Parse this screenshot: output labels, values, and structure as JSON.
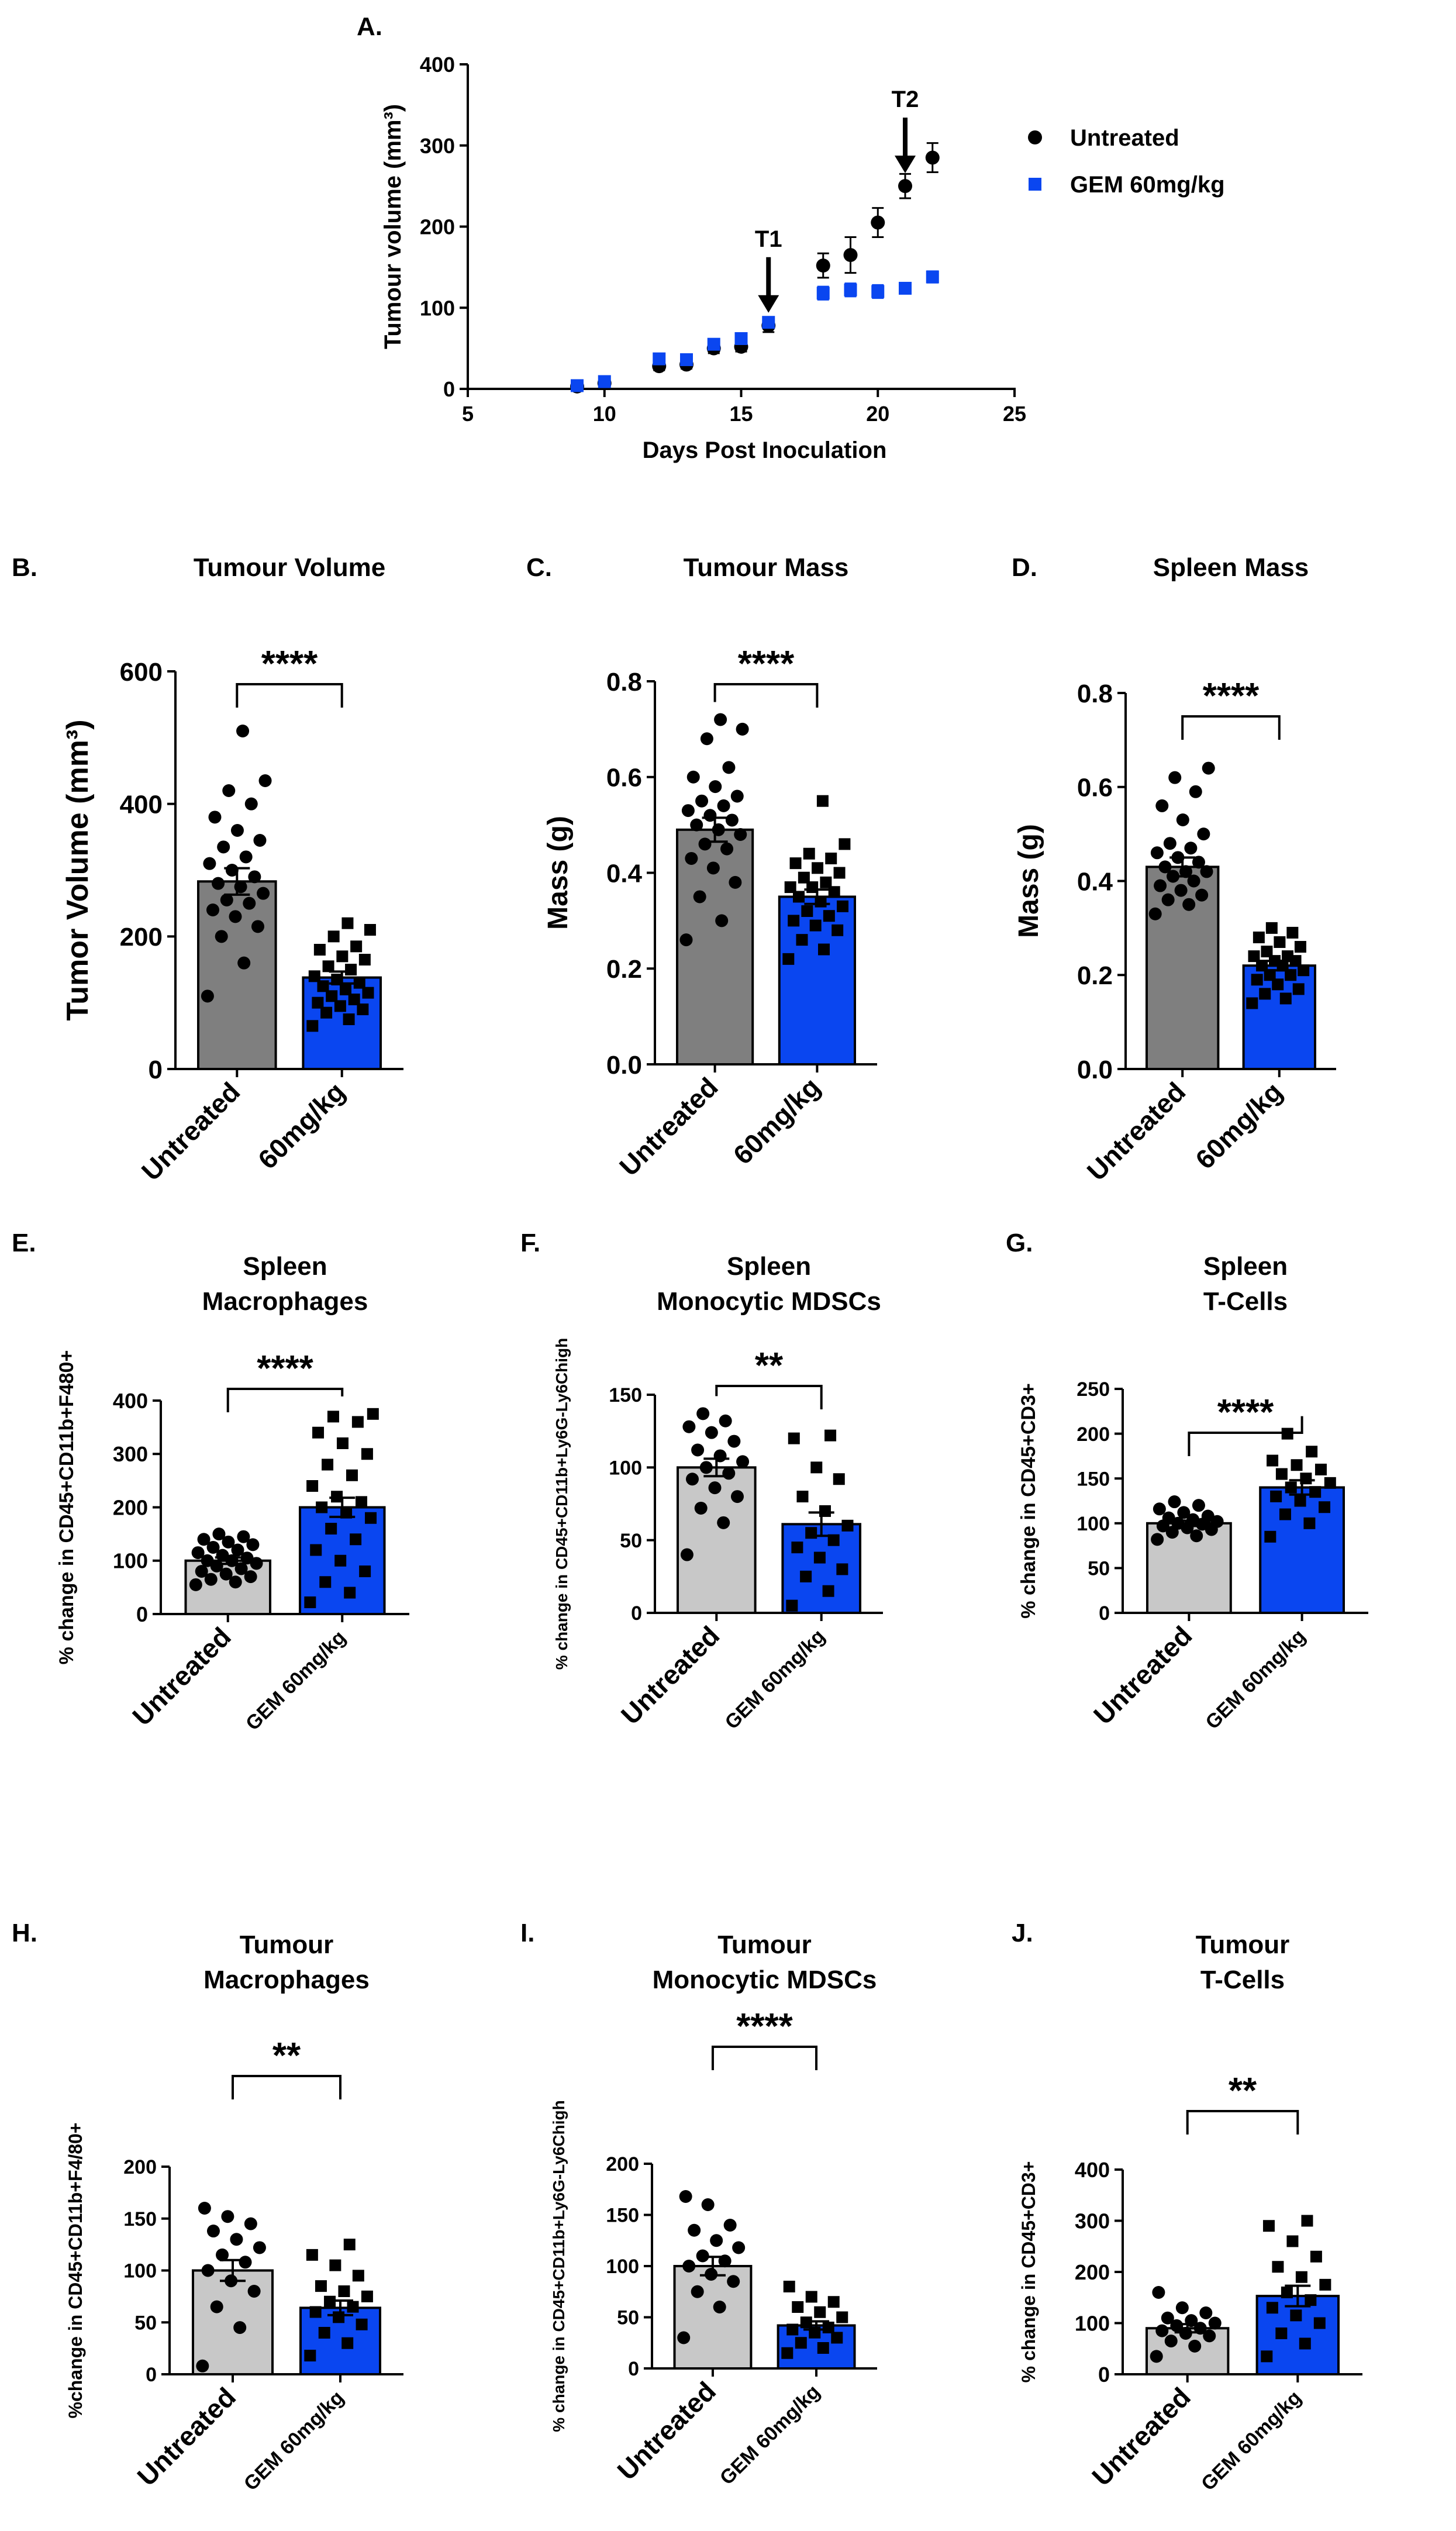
{
  "figure": {
    "colors": {
      "black": "#000000",
      "blue": "#0a46f0",
      "dark_gray": "#7f7f7f",
      "light_gray": "#c8c8c8",
      "arrow_blue": "#1f4fe0"
    }
  },
  "chart_data": [
    {
      "id": "A",
      "type": "scatter",
      "panel_label": "A.",
      "title": "",
      "xlabel": "Days Post Inoculation",
      "ylabel": "Tumour volume (mm³)",
      "xlim": [
        5,
        25
      ],
      "ylim": [
        0,
        400
      ],
      "xticks": [
        5,
        10,
        15,
        20,
        25
      ],
      "yticks": [
        0,
        100,
        200,
        300,
        400
      ],
      "legend_position": "right",
      "series": [
        {
          "name": "Untreated",
          "marker": "circle",
          "color": "#000000",
          "x": [
            9,
            10,
            12,
            13,
            14,
            15,
            16,
            18,
            19,
            20,
            21,
            22
          ],
          "y": [
            3,
            7,
            28,
            30,
            50,
            52,
            78,
            152,
            165,
            205,
            250,
            285
          ],
          "err": [
            2,
            2,
            5,
            5,
            6,
            6,
            8,
            15,
            22,
            18,
            15,
            18
          ]
        },
        {
          "name": "GEM 60mg/kg",
          "marker": "square",
          "color": "#0a46f0",
          "x": [
            9,
            10,
            12,
            13,
            14,
            15,
            16,
            18,
            19,
            20,
            21,
            22
          ],
          "y": [
            4,
            9,
            37,
            36,
            55,
            62,
            82,
            118,
            122,
            120,
            124,
            138
          ],
          "err": [
            2,
            2,
            5,
            5,
            5,
            6,
            6,
            8,
            8,
            8,
            6,
            7
          ]
        }
      ],
      "annotations": [
        {
          "text": "T1",
          "x": 16,
          "y": 78
        },
        {
          "text": "T2",
          "x": 21,
          "y": 250
        }
      ]
    },
    {
      "id": "B",
      "type": "bar",
      "panel_label": "B.",
      "title": "Tumour Volume",
      "ylabel": "Tumor Volume (mm³)",
      "categories": [
        "Untreated",
        "60mg/kg"
      ],
      "ylim": [
        0,
        600
      ],
      "yticks": [
        0,
        200,
        400,
        600
      ],
      "significance": "****",
      "values": [
        283,
        138
      ],
      "sem": [
        20,
        9
      ],
      "bar_colors": [
        "#7f7f7f",
        "#0a46f0"
      ],
      "points": [
        [
          110,
          160,
          200,
          215,
          230,
          240,
          250,
          255,
          265,
          275,
          280,
          290,
          300,
          310,
          320,
          335,
          345,
          360,
          380,
          400,
          420,
          435,
          510
        ],
        [
          65,
          75,
          85,
          90,
          95,
          100,
          105,
          110,
          115,
          120,
          125,
          130,
          135,
          140,
          150,
          155,
          165,
          170,
          180,
          185,
          200,
          210,
          220
        ]
      ]
    },
    {
      "id": "C",
      "type": "bar",
      "panel_label": "C.",
      "title": "Tumour Mass",
      "ylabel": "Mass (g)",
      "categories": [
        "Untreated",
        "60mg/kg"
      ],
      "ylim": [
        0,
        0.8
      ],
      "yticks": [
        0.0,
        0.2,
        0.4,
        0.6,
        0.8
      ],
      "significance": "****",
      "values": [
        0.49,
        0.35
      ],
      "sem": [
        0.025,
        0.015
      ],
      "bar_colors": [
        "#7f7f7f",
        "#0a46f0"
      ],
      "points": [
        [
          0.26,
          0.3,
          0.35,
          0.38,
          0.41,
          0.43,
          0.45,
          0.46,
          0.48,
          0.49,
          0.5,
          0.51,
          0.52,
          0.53,
          0.54,
          0.55,
          0.56,
          0.58,
          0.6,
          0.62,
          0.68,
          0.7,
          0.72
        ],
        [
          0.22,
          0.24,
          0.26,
          0.28,
          0.29,
          0.3,
          0.31,
          0.32,
          0.33,
          0.34,
          0.35,
          0.36,
          0.37,
          0.37,
          0.38,
          0.39,
          0.4,
          0.41,
          0.42,
          0.43,
          0.44,
          0.46,
          0.55
        ]
      ]
    },
    {
      "id": "D",
      "type": "bar",
      "panel_label": "D.",
      "title": "Spleen Mass",
      "ylabel": "Mass (g)",
      "categories": [
        "Untreated",
        "60mg/kg"
      ],
      "ylim": [
        0,
        0.8
      ],
      "yticks": [
        0.0,
        0.2,
        0.4,
        0.6,
        0.8
      ],
      "significance": "****",
      "values": [
        0.43,
        0.22
      ],
      "sem": [
        0.02,
        0.01
      ],
      "bar_colors": [
        "#7f7f7f",
        "#0a46f0"
      ],
      "points": [
        [
          0.33,
          0.35,
          0.36,
          0.37,
          0.38,
          0.39,
          0.4,
          0.41,
          0.42,
          0.42,
          0.43,
          0.44,
          0.45,
          0.46,
          0.47,
          0.48,
          0.5,
          0.53,
          0.56,
          0.59,
          0.62,
          0.64
        ],
        [
          0.14,
          0.15,
          0.16,
          0.17,
          0.18,
          0.19,
          0.2,
          0.2,
          0.21,
          0.22,
          0.22,
          0.23,
          0.23,
          0.24,
          0.24,
          0.25,
          0.26,
          0.27,
          0.28,
          0.29,
          0.3
        ]
      ]
    },
    {
      "id": "E",
      "type": "bar",
      "panel_label": "E.",
      "title": [
        "Spleen",
        "Macrophages"
      ],
      "ylabel": "% change in CD45+CD11b+F480+",
      "categories": [
        "Untreated",
        "GEM 60mg/kg"
      ],
      "ylim": [
        0,
        400
      ],
      "yticks": [
        0,
        100,
        200,
        300,
        400
      ],
      "significance": "****",
      "values": [
        100,
        200
      ],
      "sem": [
        6,
        18
      ],
      "bar_colors": [
        "#c8c8c8",
        "#0a46f0"
      ],
      "points": [
        [
          55,
          60,
          65,
          70,
          75,
          80,
          85,
          90,
          95,
          100,
          100,
          105,
          110,
          115,
          120,
          125,
          130,
          135,
          140,
          145,
          150
        ],
        [
          22,
          40,
          60,
          80,
          100,
          120,
          140,
          160,
          180,
          190,
          200,
          210,
          220,
          240,
          260,
          280,
          300,
          320,
          340,
          360,
          370,
          375
        ]
      ]
    },
    {
      "id": "F",
      "type": "bar",
      "panel_label": "F.",
      "title": [
        "Spleen",
        "Monocytic MDSCs"
      ],
      "ylabel": "% change in CD45+CD11b+Ly6G-Ly6Chigh",
      "categories": [
        "Untreated",
        "GEM 60mg/kg"
      ],
      "ylim": [
        0,
        150
      ],
      "yticks": [
        0,
        50,
        100,
        150
      ],
      "significance": "**",
      "values": [
        100,
        61
      ],
      "sem": [
        6,
        8
      ],
      "bar_colors": [
        "#c8c8c8",
        "#0a46f0"
      ],
      "points": [
        [
          40,
          62,
          72,
          80,
          86,
          92,
          96,
          100,
          104,
          108,
          112,
          118,
          124,
          128,
          132,
          137
        ],
        [
          5,
          15,
          25,
          30,
          38,
          45,
          50,
          55,
          60,
          70,
          80,
          92,
          100,
          120,
          122
        ]
      ]
    },
    {
      "id": "G",
      "type": "bar",
      "panel_label": "G.",
      "title": [
        "Spleen",
        "T-Cells"
      ],
      "ylabel": "% change in CD45+CD3+",
      "categories": [
        "Untreated",
        "GEM 60mg/kg"
      ],
      "ylim": [
        0,
        250
      ],
      "yticks": [
        0,
        50,
        100,
        150,
        200,
        250
      ],
      "significance": "****",
      "values": [
        100,
        140
      ],
      "sem": [
        3,
        8
      ],
      "bar_colors": [
        "#c8c8c8",
        "#0a46f0"
      ],
      "points": [
        [
          82,
          86,
          90,
          93,
          95,
          97,
          99,
          100,
          102,
          104,
          106,
          108,
          112,
          116,
          120,
          124
        ],
        [
          85,
          100,
          110,
          118,
          125,
          130,
          135,
          140,
          145,
          150,
          155,
          160,
          165,
          170,
          180,
          200
        ]
      ]
    },
    {
      "id": "H",
      "type": "bar",
      "panel_label": "H.",
      "title": [
        "Tumour",
        "Macrophages"
      ],
      "ylabel": "%change in CD45+CD11b+F4/80+",
      "categories": [
        "Untreated",
        "GEM 60mg/kg"
      ],
      "ylim": [
        0,
        200
      ],
      "yticks": [
        0,
        50,
        100,
        150,
        200
      ],
      "significance": "**",
      "values": [
        100,
        64
      ],
      "sem": [
        10,
        7
      ],
      "bar_colors": [
        "#c8c8c8",
        "#0a46f0"
      ],
      "points": [
        [
          8,
          45,
          65,
          80,
          90,
          100,
          108,
          115,
          122,
          130,
          138,
          145,
          152,
          160
        ],
        [
          18,
          30,
          40,
          48,
          55,
          60,
          65,
          70,
          75,
          80,
          85,
          95,
          105,
          115,
          125
        ]
      ]
    },
    {
      "id": "I",
      "type": "bar",
      "panel_label": "I.",
      "title": [
        "Tumour",
        "Monocytic MDSCs"
      ],
      "ylabel": "% change in CD45+CD11b+Ly6G-Ly6Chigh",
      "categories": [
        "Untreated",
        "GEM 60mg/kg"
      ],
      "ylim": [
        0,
        200
      ],
      "yticks": [
        0,
        50,
        100,
        150,
        200
      ],
      "significance": "****",
      "values": [
        100,
        42
      ],
      "sem": [
        9,
        4
      ],
      "bar_colors": [
        "#c8c8c8",
        "#0a46f0"
      ],
      "points": [
        [
          30,
          60,
          75,
          85,
          92,
          100,
          105,
          110,
          118,
          125,
          135,
          140,
          160,
          168
        ],
        [
          15,
          20,
          25,
          30,
          35,
          38,
          40,
          45,
          50,
          55,
          60,
          65,
          70,
          80
        ]
      ]
    },
    {
      "id": "J",
      "type": "bar",
      "panel_label": "J.",
      "title": [
        "Tumour",
        "T-Cells"
      ],
      "ylabel": "% change in CD45+CD3+",
      "categories": [
        "Untreated",
        "GEM 60mg/kg"
      ],
      "ylim": [
        0,
        400
      ],
      "yticks": [
        0,
        100,
        200,
        300,
        400
      ],
      "significance": "**",
      "values": [
        90,
        153
      ],
      "sem": [
        8,
        20
      ],
      "bar_colors": [
        "#c8c8c8",
        "#0a46f0"
      ],
      "points": [
        [
          35,
          55,
          65,
          75,
          80,
          85,
          90,
          95,
          100,
          105,
          110,
          120,
          130,
          160
        ],
        [
          35,
          60,
          80,
          100,
          115,
          130,
          145,
          160,
          175,
          190,
          210,
          230,
          260,
          290,
          300
        ]
      ]
    }
  ]
}
